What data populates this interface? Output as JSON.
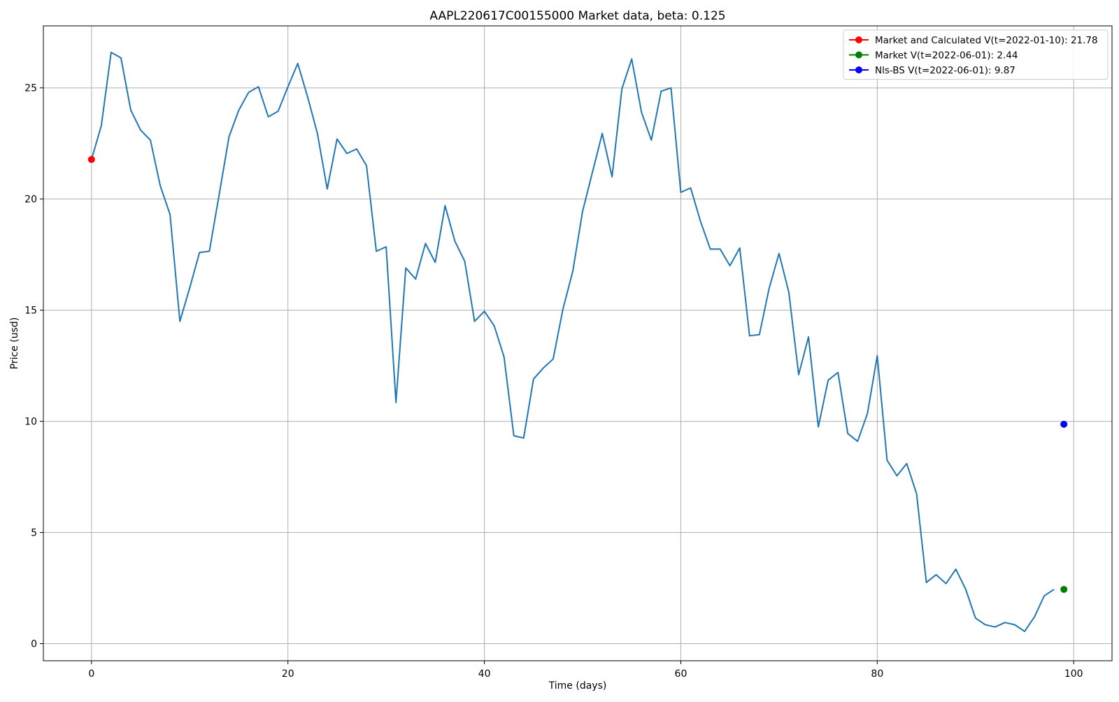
{
  "chart_data": {
    "type": "line",
    "title": "AAPL220617C00155000 Market data, beta: 0.125",
    "xlabel": "Time (days)",
    "ylabel": "Price (usd)",
    "xlim": [
      -4.9,
      103.9
    ],
    "ylim": [
      -0.77,
      27.79
    ],
    "xticks": [
      0,
      20,
      40,
      60,
      80,
      100
    ],
    "yticks": [
      0,
      5,
      10,
      15,
      20,
      25
    ],
    "grid": true,
    "legend_position": "top-right",
    "series": [
      {
        "color": "#1f77b4",
        "x": [
          0,
          1,
          2,
          3,
          4,
          5,
          6,
          7,
          8,
          9,
          10,
          11,
          12,
          13,
          14,
          15,
          16,
          17,
          18,
          19,
          20,
          21,
          22,
          23,
          24,
          25,
          26,
          27,
          28,
          29,
          30,
          31,
          32,
          33,
          34,
          35,
          36,
          37,
          38,
          39,
          40,
          41,
          42,
          43,
          44,
          45,
          46,
          47,
          48,
          49,
          50,
          51,
          52,
          53,
          54,
          55,
          56,
          57,
          58,
          59,
          60,
          61,
          62,
          63,
          64,
          65,
          66,
          67,
          68,
          69,
          70,
          71,
          72,
          73,
          74,
          75,
          76,
          77,
          78,
          79,
          80,
          81,
          82,
          83,
          84,
          85,
          86,
          87,
          88,
          89,
          90,
          91,
          92,
          93,
          94,
          95,
          96,
          97,
          98
        ],
        "y": [
          21.78,
          23.3,
          26.6,
          26.35,
          24.0,
          23.1,
          22.65,
          20.6,
          19.3,
          14.5,
          16.0,
          17.6,
          17.65,
          20.2,
          22.8,
          24.0,
          24.8,
          25.05,
          23.7,
          23.95,
          25.05,
          26.1,
          24.6,
          22.95,
          20.45,
          22.7,
          22.05,
          22.25,
          21.5,
          17.65,
          17.85,
          10.85,
          16.9,
          16.4,
          18.0,
          17.15,
          19.7,
          18.1,
          17.2,
          14.5,
          14.95,
          14.3,
          12.9,
          9.35,
          9.25,
          11.9,
          12.4,
          12.8,
          15.05,
          16.75,
          19.45,
          21.2,
          22.95,
          21.0,
          24.95,
          26.3,
          23.9,
          22.65,
          24.85,
          25.0,
          20.3,
          20.5,
          19.0,
          17.75,
          17.75,
          17.0,
          17.8,
          13.85,
          13.9,
          16.0,
          17.55,
          15.8,
          12.1,
          13.8,
          9.75,
          11.85,
          12.2,
          9.45,
          9.1,
          10.35,
          12.95,
          8.25,
          7.55,
          8.1,
          6.75,
          2.75,
          3.1,
          2.7,
          3.35,
          2.45,
          1.15,
          0.85,
          0.75,
          0.95,
          0.85,
          0.55,
          1.2,
          2.15,
          2.44
        ]
      }
    ],
    "points": [
      {
        "name": "Market and Calculated V(t=2022-01-10): 21.78",
        "x": 0,
        "y": 21.78,
        "color": "#ff0000"
      },
      {
        "name": "Market V(t=2022-06-01): 2.44",
        "x": 99,
        "y": 2.44,
        "color": "#008000"
      },
      {
        "name": "Nls-BS V(t=2022-06-01): 9.87",
        "x": 99,
        "y": 9.87,
        "color": "#0000ff"
      }
    ]
  }
}
